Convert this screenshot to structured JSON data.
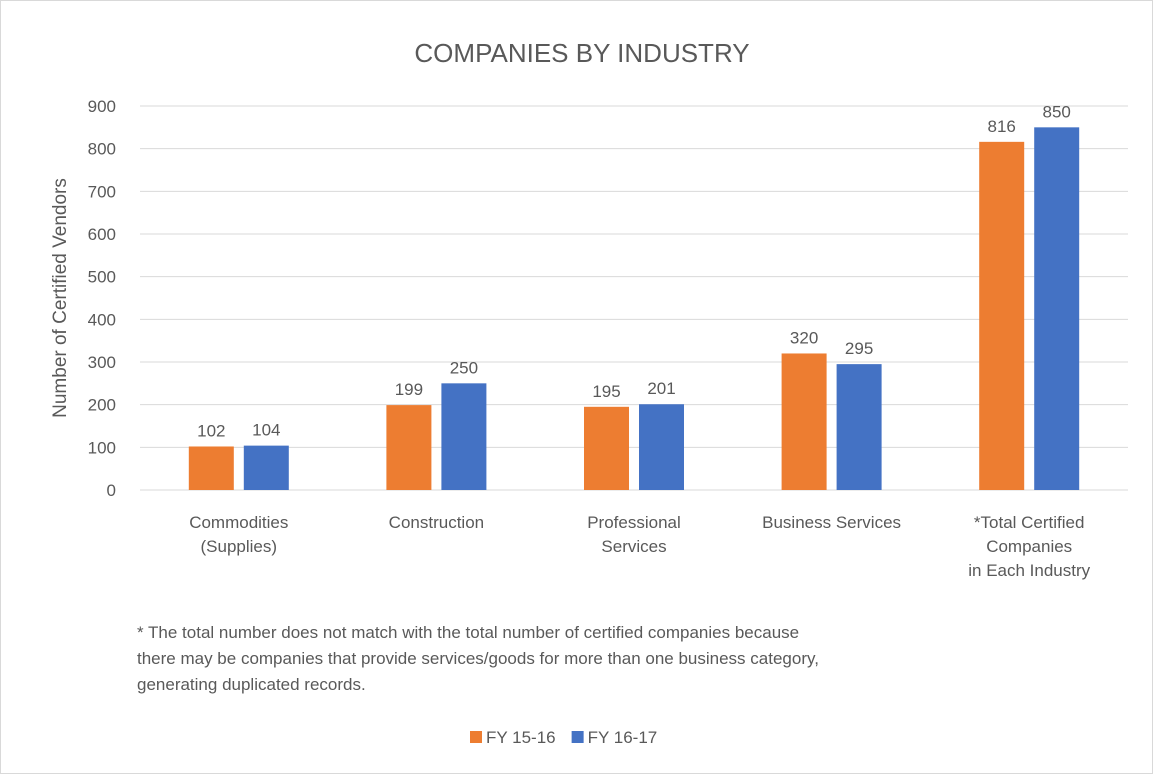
{
  "chart_data": {
    "type": "bar",
    "title": "COMPANIES BY INDUSTRY",
    "y_label": "Number of Certified Vendors",
    "categories": [
      "Commodities\n(Supplies)",
      "Construction",
      "Professional\nServices",
      "Business Services",
      "*Total Certified\nCompanies\nin Each Industry"
    ],
    "series": [
      {
        "name": "FY 15-16",
        "color": "#ed7d31",
        "values": [
          102,
          199,
          195,
          320,
          816
        ]
      },
      {
        "name": "FY 16-17",
        "color": "#4472c4",
        "values": [
          104,
          250,
          201,
          295,
          850
        ]
      }
    ],
    "ylim": [
      0,
      900
    ],
    "yticks": [
      0,
      100,
      200,
      300,
      400,
      500,
      600,
      700,
      800,
      900
    ],
    "grid": true,
    "annotation": "* The total number does not match with the total number of certified companies because\nthere may be companies that provide services/goods for more than one business category,\ngenerating duplicated records.",
    "legend": "bottom"
  }
}
